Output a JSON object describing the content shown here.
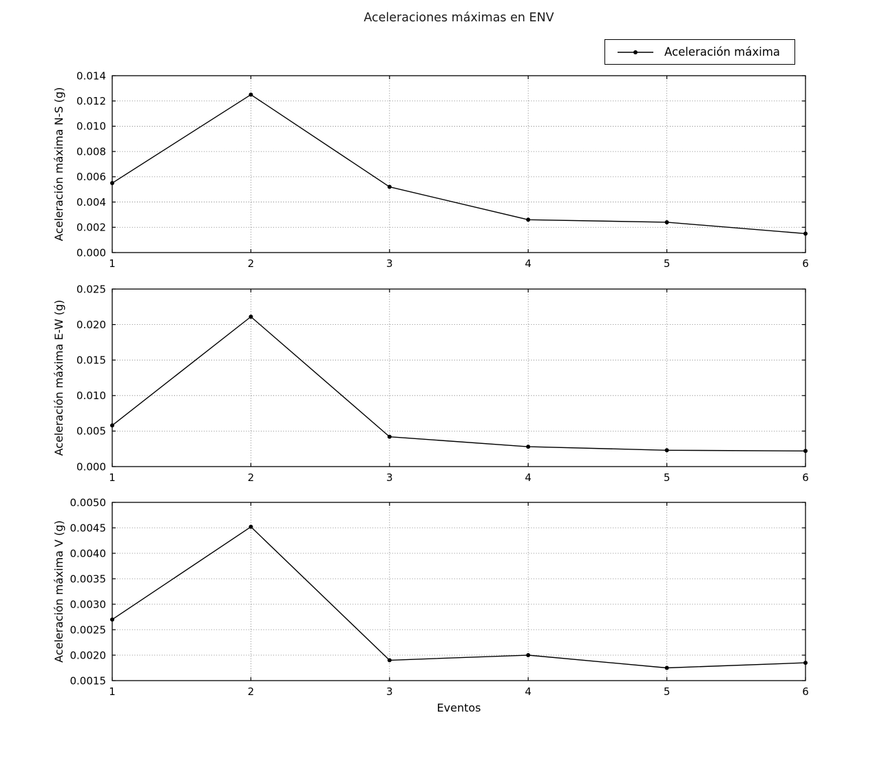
{
  "title": "Aceleraciones máximas en ENV",
  "xlabel": "Eventos",
  "legend": {
    "label": "Aceleración máxima",
    "marker": "filled-dot-on-line"
  },
  "colors": {
    "line": "#000000",
    "marker": "#000000",
    "grid": "#000000",
    "background": "#ffffff",
    "text": "#000000"
  },
  "chart_data": [
    {
      "type": "line",
      "title": "",
      "xlabel": "",
      "ylabel": "Aceleración máxima N-S (g)",
      "grid": true,
      "legend_position": "figure upper right",
      "xlim": [
        1,
        6
      ],
      "ylim": [
        0.0,
        0.014
      ],
      "xticks": {
        "values": [
          1,
          2,
          3,
          4,
          5,
          6
        ],
        "labels": [
          "1",
          "2",
          "3",
          "4",
          "5",
          "6"
        ]
      },
      "yticks": {
        "values": [
          0.0,
          0.002,
          0.004,
          0.006,
          0.008,
          0.01,
          0.012,
          0.014
        ],
        "labels": [
          "0.000",
          "0.002",
          "0.004",
          "0.006",
          "0.008",
          "0.010",
          "0.012",
          "0.014"
        ]
      },
      "series": [
        {
          "name": "Aceleración máxima",
          "x": [
            1,
            2,
            3,
            4,
            5,
            6
          ],
          "y": [
            0.0055,
            0.0125,
            0.0052,
            0.0026,
            0.0024,
            0.0015
          ]
        }
      ]
    },
    {
      "type": "line",
      "title": "",
      "xlabel": "",
      "ylabel": "Aceleración máxima E-W (g)",
      "grid": true,
      "xlim": [
        1,
        6
      ],
      "ylim": [
        0.0,
        0.025
      ],
      "xticks": {
        "values": [
          1,
          2,
          3,
          4,
          5,
          6
        ],
        "labels": [
          "1",
          "2",
          "3",
          "4",
          "5",
          "6"
        ]
      },
      "yticks": {
        "values": [
          0.0,
          0.005,
          0.01,
          0.015,
          0.02,
          0.025
        ],
        "labels": [
          "0.000",
          "0.005",
          "0.010",
          "0.015",
          "0.020",
          "0.025"
        ]
      },
      "series": [
        {
          "name": "Aceleración máxima",
          "x": [
            1,
            2,
            3,
            4,
            5,
            6
          ],
          "y": [
            0.0058,
            0.0211,
            0.0042,
            0.0028,
            0.0023,
            0.0022
          ]
        }
      ]
    },
    {
      "type": "line",
      "title": "",
      "xlabel": "Eventos",
      "ylabel": "Aceleración máxima V (g)",
      "grid": true,
      "xlim": [
        1,
        6
      ],
      "ylim": [
        0.0015,
        0.005
      ],
      "xticks": {
        "values": [
          1,
          2,
          3,
          4,
          5,
          6
        ],
        "labels": [
          "1",
          "2",
          "3",
          "4",
          "5",
          "6"
        ]
      },
      "yticks": {
        "values": [
          0.0015,
          0.002,
          0.0025,
          0.003,
          0.0035,
          0.004,
          0.0045,
          0.005
        ],
        "labels": [
          "0.0015",
          "0.0020",
          "0.0025",
          "0.0030",
          "0.0035",
          "0.0040",
          "0.0045",
          "0.0050"
        ]
      },
      "series": [
        {
          "name": "Aceleración máxima",
          "x": [
            1,
            2,
            3,
            4,
            5,
            6
          ],
          "y": [
            0.0027,
            0.00452,
            0.0019,
            0.002,
            0.00175,
            0.00185
          ]
        }
      ]
    }
  ]
}
